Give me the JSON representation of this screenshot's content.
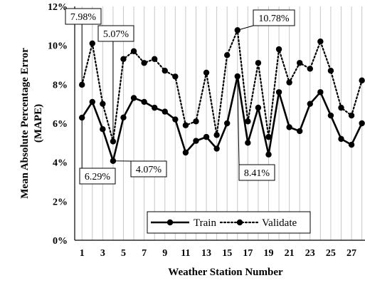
{
  "chart_data": {
    "type": "line",
    "xlabel": "Weather Station Number",
    "ylabel": "Mean Absolute Percentage Error (MAPE)",
    "ylabel_lines": [
      "Mean Absolute Percentage Error",
      "(MAPE)"
    ],
    "x": [
      1,
      2,
      3,
      4,
      5,
      6,
      7,
      8,
      9,
      10,
      11,
      12,
      13,
      14,
      15,
      16,
      17,
      18,
      19,
      20,
      21,
      22,
      23,
      24,
      25,
      26,
      27,
      28
    ],
    "x_tick_labels": [
      "1",
      "3",
      "5",
      "7",
      "9",
      "11",
      "13",
      "15",
      "17",
      "19",
      "21",
      "23",
      "25",
      "27"
    ],
    "x_tick_values": [
      1,
      3,
      5,
      7,
      9,
      11,
      13,
      15,
      17,
      19,
      21,
      23,
      25,
      27
    ],
    "ylim": [
      0,
      12
    ],
    "y_tick_values": [
      0,
      2,
      4,
      6,
      8,
      10,
      12
    ],
    "y_tick_labels": [
      "0%",
      "2%",
      "4%",
      "6%",
      "8%",
      "10%",
      "12%"
    ],
    "grid": "vertical",
    "legend_position": "bottom-center",
    "series": [
      {
        "name": "Train",
        "style": "solid",
        "color": "#000000",
        "values": [
          6.29,
          7.1,
          5.7,
          4.07,
          6.3,
          7.3,
          7.1,
          6.8,
          6.6,
          6.2,
          4.5,
          5.1,
          5.3,
          4.7,
          6.0,
          8.41,
          5.0,
          6.8,
          4.4,
          7.6,
          5.8,
          5.6,
          7.0,
          7.6,
          6.4,
          5.2,
          4.9,
          6.0
        ]
      },
      {
        "name": "Validate",
        "style": "dotted",
        "color": "#000000",
        "values": [
          7.98,
          10.1,
          7.0,
          5.07,
          9.3,
          9.7,
          9.1,
          9.3,
          8.7,
          8.4,
          5.9,
          6.1,
          8.6,
          5.4,
          9.5,
          10.78,
          6.1,
          9.1,
          5.3,
          9.8,
          8.1,
          9.1,
          8.8,
          10.2,
          8.7,
          6.8,
          6.4,
          8.2
        ]
      }
    ],
    "annotations": [
      {
        "text": "7.98%",
        "series": 1,
        "index": 0
      },
      {
        "text": "5.07%",
        "series": 1,
        "index": 3
      },
      {
        "text": "10.78%",
        "series": 1,
        "index": 15
      },
      {
        "text": "6.29%",
        "series": 0,
        "index": 0
      },
      {
        "text": "4.07%",
        "series": 0,
        "index": 3
      },
      {
        "text": "8.41%",
        "series": 0,
        "index": 15
      }
    ]
  }
}
